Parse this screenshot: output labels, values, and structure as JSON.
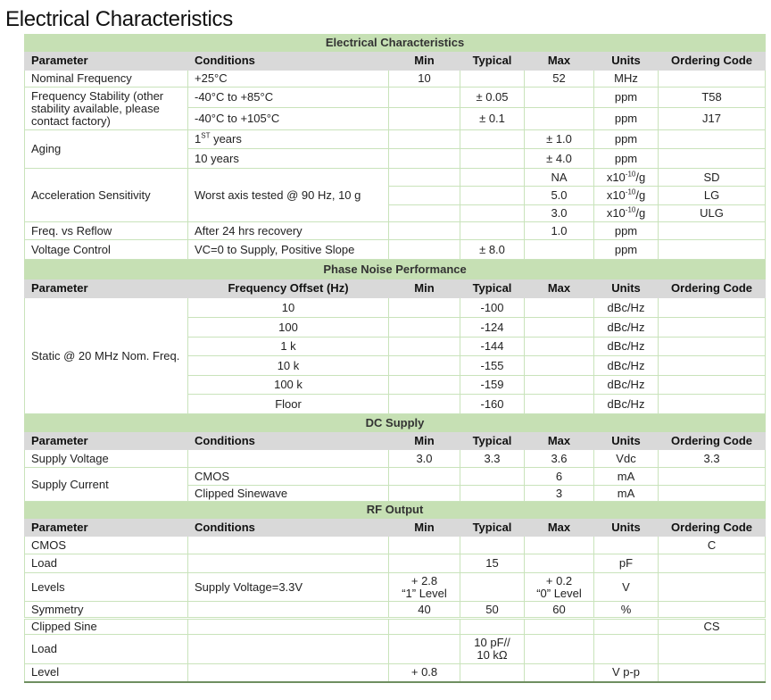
{
  "page_title": "Electrical Characteristics",
  "colors": {
    "section_header": "#c6e0b4",
    "column_header": "#d9d9d9",
    "grid": "#c9e3bb"
  },
  "sections": [
    {
      "title": "Electrical Characteristics",
      "headers": [
        "Parameter",
        "Conditions",
        "Min",
        "Typical",
        "Max",
        "Units",
        "Ordering Code"
      ],
      "rows": [
        [
          "Nominal Frequency",
          "+25°C",
          "10",
          "",
          "52",
          "MHz",
          ""
        ],
        [
          {
            "t": "Frequency Stability (other stability available, please contact factory)",
            "rs": 2
          },
          "-40°C to +85°C",
          "",
          "± 0.05",
          "",
          "ppm",
          "T58"
        ],
        [
          "-40°C to +105°C",
          "",
          "± 0.1",
          "",
          "ppm",
          "J17"
        ],
        [
          {
            "t": "Aging",
            "rs": 2
          },
          {
            "t": "1",
            "sup": "ST",
            "after": " years"
          },
          "",
          "",
          "± 1.0",
          "ppm",
          ""
        ],
        [
          "10 years",
          "",
          "",
          "± 4.0",
          "ppm",
          ""
        ],
        [
          {
            "t": "Acceleration Sensitivity",
            "rs": 3
          },
          {
            "t": "Worst axis tested @ 90 Hz, 10 g",
            "rs": 3
          },
          "",
          "",
          "NA",
          {
            "t": "x10",
            "sup": "-10",
            "after": "/g"
          },
          "SD"
        ],
        [
          "",
          "",
          "5.0",
          {
            "t": "x10",
            "sup": "-10",
            "after": "/g"
          },
          "LG"
        ],
        [
          "",
          "",
          "3.0",
          {
            "t": "x10",
            "sup": "-10",
            "after": "/g"
          },
          "ULG"
        ],
        [
          "Freq. vs Reflow",
          "After 24 hrs recovery",
          "",
          "",
          "1.0",
          "ppm",
          ""
        ],
        [
          "Voltage Control",
          "VC=0 to Supply, Positive Slope",
          "",
          "± 8.0",
          "",
          "ppm",
          ""
        ]
      ]
    },
    {
      "title": "Phase Noise Performance",
      "headers": [
        "Parameter",
        "Frequency Offset (Hz)",
        "Min",
        "Typical",
        "Max",
        "Units",
        "Ordering Code"
      ],
      "rows": [
        [
          {
            "t": "Static @ 20 MHz Nom. Freq.",
            "rs": 6
          },
          "10",
          "",
          "-100",
          "",
          "dBc/Hz",
          ""
        ],
        [
          "100",
          "",
          "-124",
          "",
          "dBc/Hz",
          ""
        ],
        [
          "1 k",
          "",
          "-144",
          "",
          "dBc/Hz",
          ""
        ],
        [
          "10 k",
          "",
          "-155",
          "",
          "dBc/Hz",
          ""
        ],
        [
          "100 k",
          "",
          "-159",
          "",
          "dBc/Hz",
          ""
        ],
        [
          "Floor",
          "",
          "-160",
          "",
          "dBc/Hz",
          ""
        ]
      ]
    },
    {
      "title": "DC Supply",
      "headers": [
        "Parameter",
        "Conditions",
        "Min",
        "Typical",
        "Max",
        "Units",
        "Ordering Code"
      ],
      "rows": [
        [
          "Supply Voltage",
          "",
          "3.0",
          "3.3",
          "3.6",
          "Vdc",
          "3.3"
        ],
        [
          {
            "t": "Supply Current",
            "rs": 2
          },
          "CMOS",
          "",
          "",
          "6",
          "mA",
          ""
        ],
        [
          "Clipped Sinewave",
          "",
          "",
          "3",
          "mA",
          ""
        ]
      ]
    },
    {
      "title": "RF Output",
      "headers": [
        "Parameter",
        "Conditions",
        "Min",
        "Typical",
        "Max",
        "Units",
        "Ordering Code"
      ],
      "rows": [
        [
          "CMOS",
          "",
          "",
          "",
          "",
          "",
          "C"
        ],
        [
          "Load",
          "",
          "",
          "15",
          "",
          "pF",
          ""
        ],
        [
          "Levels",
          "Supply Voltage=3.3V",
          "+ 2.8\n“1” Level",
          "",
          "+ 0.2\n“0” Level",
          "V",
          ""
        ],
        [
          "Symmetry",
          "",
          "40",
          "50",
          "60",
          "%",
          ""
        ],
        [
          "Clipped Sine",
          "",
          "",
          "",
          "",
          "",
          "CS"
        ],
        [
          "Load",
          "",
          "",
          "10 pF//\n10 kΩ",
          "",
          "",
          ""
        ],
        [
          "Level",
          "",
          "+ 0.8",
          "",
          "",
          "V p-p",
          ""
        ]
      ]
    }
  ]
}
